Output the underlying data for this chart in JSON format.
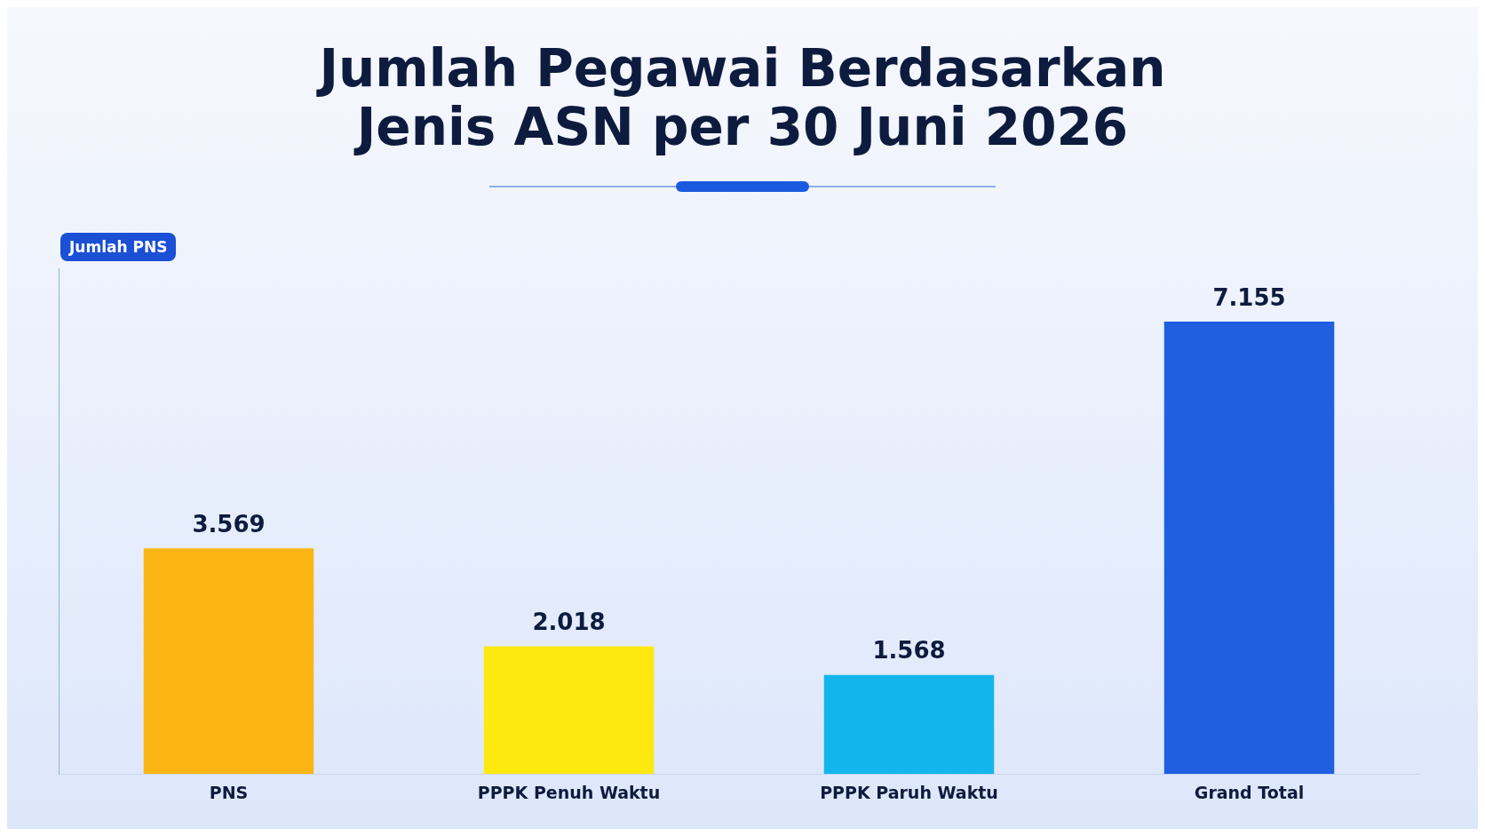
{
  "chart_data": {
    "type": "bar",
    "title": "Jumlah Pegawai Berdasarkan Jenis ASN per 30 Juni 2026",
    "ylabel": "Jumlah PNS",
    "categories": [
      "PNS",
      "PPPK Penuh Waktu",
      "PPPK Paruh Waktu",
      "Grand Total"
    ],
    "values": [
      3569,
      2018,
      1568,
      7155
    ],
    "colors": [
      "#fbb615",
      "#fde910",
      "#12b6ec",
      "#1f5fe0"
    ],
    "value_labels": [
      "3.569",
      "2.018",
      "1.568",
      "7.155"
    ]
  }
}
